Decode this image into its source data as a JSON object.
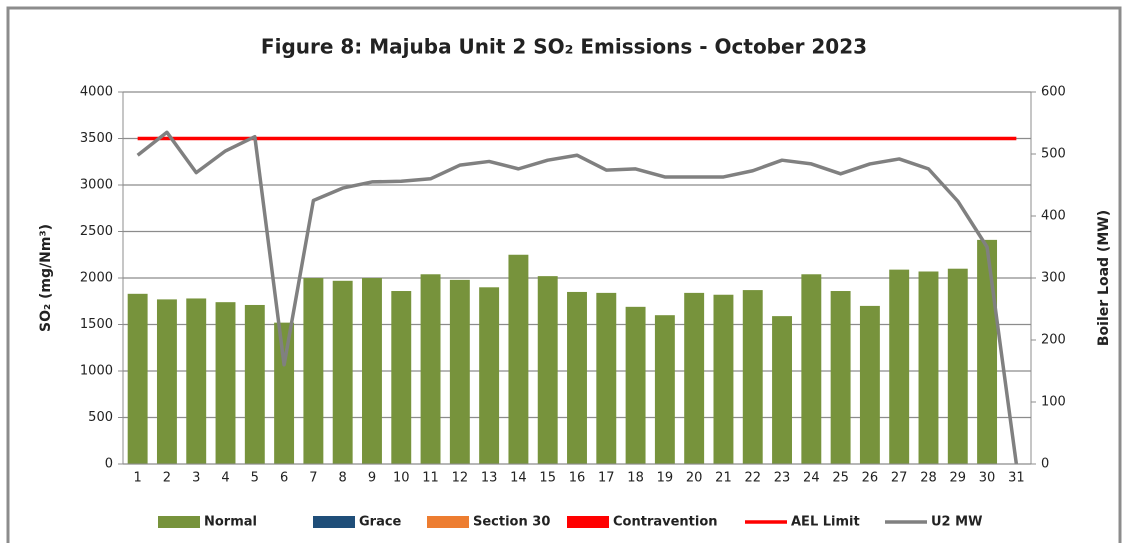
{
  "chart_data": {
    "type": "bar",
    "title": "Figure 8: Majuba Unit 2 SO₂ Emissions -  October 2023",
    "y_label": "SO₂ (mg/Nm³)",
    "y2_label": "Boiler Load (MW)",
    "categories": [
      1,
      2,
      3,
      4,
      5,
      6,
      7,
      8,
      9,
      10,
      11,
      12,
      13,
      14,
      15,
      16,
      17,
      18,
      19,
      20,
      21,
      22,
      23,
      24,
      25,
      26,
      27,
      28,
      29,
      30,
      31
    ],
    "ylim": [
      0,
      4000
    ],
    "yticks": [
      0,
      500,
      1000,
      1500,
      2000,
      2500,
      3000,
      3500,
      4000
    ],
    "y2lim": [
      0,
      600
    ],
    "y2ticks": [
      0,
      100,
      200,
      300,
      400,
      500,
      600
    ],
    "grid": true,
    "legend": "bottom",
    "series": [
      {
        "name": "Normal",
        "type": "bar",
        "color": "#77933c",
        "values": [
          1830,
          1770,
          1780,
          1740,
          1710,
          1520,
          2000,
          1970,
          2000,
          1860,
          2040,
          1980,
          1900,
          2250,
          2020,
          1850,
          1840,
          1690,
          1600,
          1840,
          1820,
          1870,
          1590,
          2040,
          1860,
          1700,
          2090,
          2070,
          2100,
          2410,
          null
        ]
      },
      {
        "name": "Grace",
        "type": "bar",
        "color": "#1f4e79",
        "values": [
          null,
          null,
          null,
          null,
          null,
          null,
          null,
          null,
          null,
          null,
          null,
          null,
          null,
          null,
          null,
          null,
          null,
          null,
          null,
          null,
          null,
          null,
          null,
          null,
          null,
          null,
          null,
          null,
          null,
          null,
          null
        ]
      },
      {
        "name": "Section 30",
        "type": "bar",
        "color": "#ed7d31",
        "values": [
          null,
          null,
          null,
          null,
          null,
          null,
          null,
          null,
          null,
          null,
          null,
          null,
          null,
          null,
          null,
          null,
          null,
          null,
          null,
          null,
          null,
          null,
          null,
          null,
          null,
          null,
          null,
          null,
          null,
          null,
          null
        ]
      },
      {
        "name": "Contravention",
        "type": "bar",
        "color": "#ff0000",
        "values": [
          null,
          null,
          null,
          null,
          null,
          null,
          null,
          null,
          null,
          null,
          null,
          null,
          null,
          null,
          null,
          null,
          null,
          null,
          null,
          null,
          null,
          null,
          null,
          null,
          null,
          null,
          null,
          null,
          null,
          null,
          null
        ]
      },
      {
        "name": "AEL Limit",
        "type": "line",
        "color": "#ff0000",
        "values": [
          3500,
          3500,
          3500,
          3500,
          3500,
          3500,
          3500,
          3500,
          3500,
          3500,
          3500,
          3500,
          3500,
          3500,
          3500,
          3500,
          3500,
          3500,
          3500,
          3500,
          3500,
          3500,
          3500,
          3500,
          3500,
          3500,
          3500,
          3500,
          3500,
          3500,
          3500
        ]
      },
      {
        "name": "U2 MW",
        "type": "line",
        "axis": "y2",
        "color": "#808080",
        "values": [
          498,
          535,
          470,
          505,
          528,
          160,
          425,
          445,
          455,
          456,
          460,
          482,
          488,
          476,
          490,
          498,
          474,
          476,
          463,
          463,
          463,
          473,
          490,
          484,
          468,
          484,
          492,
          476,
          424,
          350,
          0
        ]
      }
    ]
  }
}
